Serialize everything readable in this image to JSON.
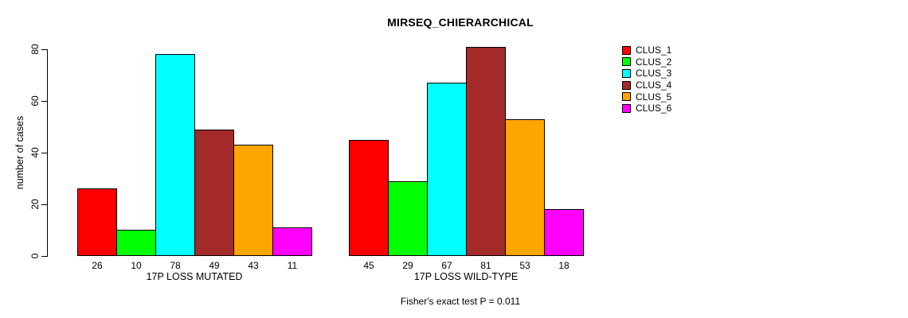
{
  "chart_data": {
    "type": "bar",
    "title": "MIRSEQ_CHIERARCHICAL",
    "ylabel": "number of cases",
    "xlabel": "",
    "ylim": [
      0,
      80
    ],
    "yticks": [
      0,
      20,
      40,
      60,
      80
    ],
    "grid": false,
    "legend_position": "right-outside",
    "categories": [
      "17P LOSS MUTATED",
      "17P LOSS WILD-TYPE"
    ],
    "series": [
      {
        "name": "CLUS_1",
        "color": "#FF0000",
        "values": [
          26,
          45
        ]
      },
      {
        "name": "CLUS_2",
        "color": "#00FF00",
        "values": [
          10,
          29
        ]
      },
      {
        "name": "CLUS_3",
        "color": "#00FFFF",
        "values": [
          78,
          67
        ]
      },
      {
        "name": "CLUS_4",
        "color": "#A52A2A",
        "values": [
          49,
          81
        ]
      },
      {
        "name": "CLUS_5",
        "color": "#FFA500",
        "values": [
          43,
          53
        ]
      },
      {
        "name": "CLUS_6",
        "color": "#FF00FF",
        "values": [
          11,
          18
        ]
      }
    ],
    "bar_value_labels": [
      [
        26,
        10,
        78,
        49,
        43,
        11
      ],
      [
        45,
        29,
        67,
        81,
        53,
        18
      ]
    ],
    "annotation": "Fisher's exact test P = 0.011"
  }
}
